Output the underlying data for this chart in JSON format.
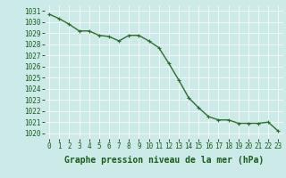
{
  "x": [
    0,
    1,
    2,
    3,
    4,
    5,
    6,
    7,
    8,
    9,
    10,
    11,
    12,
    13,
    14,
    15,
    16,
    17,
    18,
    19,
    20,
    21,
    22,
    23
  ],
  "y": [
    1030.7,
    1030.3,
    1029.8,
    1029.2,
    1029.2,
    1028.8,
    1028.7,
    1028.3,
    1028.8,
    1028.8,
    1028.3,
    1027.7,
    1026.3,
    1024.8,
    1023.2,
    1022.3,
    1021.5,
    1021.2,
    1021.2,
    1020.9,
    1020.9,
    1020.9,
    1021.0,
    1020.2
  ],
  "xlim": [
    -0.5,
    23.5
  ],
  "ylim": [
    1019.5,
    1031.5
  ],
  "yticks": [
    1020,
    1021,
    1022,
    1023,
    1024,
    1025,
    1026,
    1027,
    1028,
    1029,
    1030,
    1031
  ],
  "xticks": [
    0,
    1,
    2,
    3,
    4,
    5,
    6,
    7,
    8,
    9,
    10,
    11,
    12,
    13,
    14,
    15,
    16,
    17,
    18,
    19,
    20,
    21,
    22,
    23
  ],
  "xlabel": "Graphe pression niveau de la mer (hPa)",
  "line_color": "#2d6e2d",
  "marker_color": "#2d6e2d",
  "bg_color": "#cceae7",
  "grid_color": "#ffffff",
  "axis_label_color": "#1a5c1a",
  "tick_label_color": "#1a5c1a",
  "marker": "+",
  "markersize": 3,
  "linewidth": 1.0,
  "xlabel_fontsize": 7,
  "tick_fontsize": 5.5
}
